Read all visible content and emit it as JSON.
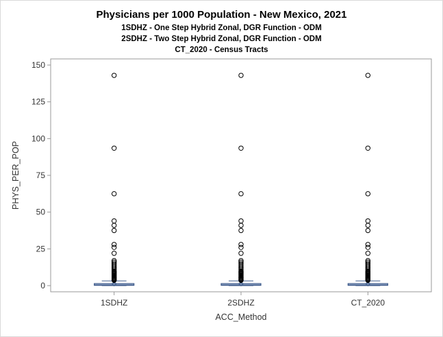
{
  "chart_data": {
    "type": "box",
    "title": "Physicians per 1000 Population - New Mexico, 2021",
    "subtitles": [
      "1SDHZ - One Step Hybrid Zonal, DGR Function - ODM",
      "2SDHZ - Two Step Hybrid Zonal, DGR Function - ODM",
      "CT_2020 - Census Tracts"
    ],
    "xlabel": "ACC_Method",
    "ylabel": "PHYS_PER_POP",
    "categories": [
      "1SDHZ",
      "2SDHZ",
      "CT_2020"
    ],
    "ylim": [
      -4,
      155
    ],
    "yticks": [
      0,
      25,
      50,
      75,
      100,
      125,
      150
    ],
    "grid": false,
    "series": [
      {
        "category": "1SDHZ",
        "q1": 0.2,
        "median": 0.5,
        "mean": 1.2,
        "q3": 1.4,
        "whisker_low": 0,
        "whisker_high": 3.2,
        "outliers": [
          143,
          93.5,
          62.5,
          44,
          41,
          37.5,
          28,
          26,
          22,
          17,
          16,
          15,
          14,
          13,
          12,
          11,
          10,
          9.5,
          9,
          8.5,
          8,
          7.5,
          7,
          6.5,
          6,
          5.5,
          5,
          4.5,
          4,
          3.6
        ]
      },
      {
        "category": "2SDHZ",
        "q1": 0.2,
        "median": 0.5,
        "mean": 1.2,
        "q3": 1.4,
        "whisker_low": 0,
        "whisker_high": 3.2,
        "outliers": [
          143,
          93.5,
          62.5,
          44,
          41,
          37.5,
          28,
          26,
          22,
          17,
          16,
          15,
          14,
          13,
          12,
          11,
          10,
          9.5,
          9,
          8.5,
          8,
          7.5,
          7,
          6.5,
          6,
          5.5,
          5,
          4.5,
          4,
          3.6
        ]
      },
      {
        "category": "CT_2020",
        "q1": 0.2,
        "median": 0.5,
        "mean": 1.2,
        "q3": 1.4,
        "whisker_low": 0,
        "whisker_high": 3.2,
        "outliers": [
          143,
          93.5,
          62.5,
          44,
          41,
          37.5,
          28,
          26,
          22,
          17,
          16,
          15,
          14,
          13,
          12,
          11,
          10,
          9.5,
          9,
          8.5,
          8,
          7.5,
          7,
          6.5,
          6,
          5.5,
          5,
          4.5,
          4,
          3.6
        ]
      }
    ],
    "colors": {
      "box_fill": "#c9d6ea",
      "box_stroke": "#3d5a8a",
      "mean_marker": "#3d5a8a",
      "outlier": "#000000",
      "frame": "#999999"
    }
  }
}
